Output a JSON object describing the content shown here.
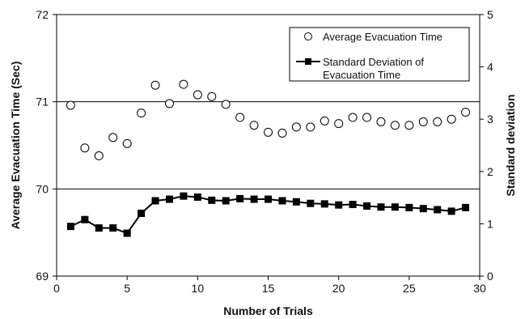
{
  "chart_data": {
    "type": "line",
    "xlabel": "Number of Trials",
    "ylabel_left": "Average Evacuation Time (Sec)",
    "ylabel_right": "Standard deviation",
    "xlim": [
      0,
      30
    ],
    "ylim_left": [
      69,
      72
    ],
    "ylim_right": [
      0,
      5
    ],
    "x_ticks": [
      "0",
      "5",
      "10",
      "15",
      "20",
      "25",
      "30"
    ],
    "y_left_ticks": [
      "72",
      "71",
      "70",
      "69"
    ],
    "y_right_ticks": [
      "5",
      "4",
      "3",
      "2",
      "1",
      "0"
    ],
    "gridlines_left": [
      70,
      71
    ],
    "legend_position": "top-right",
    "series": [
      {
        "name": "Average Evacuation Time",
        "axis": "left",
        "marker": "open-circle",
        "line": false,
        "x": [
          1,
          2,
          3,
          4,
          5,
          6,
          7,
          8,
          9,
          10,
          11,
          12,
          13,
          14,
          15,
          16,
          17,
          18,
          19,
          20,
          21,
          22,
          23,
          24,
          25,
          26,
          27,
          28,
          29
        ],
        "y": [
          70.96,
          70.47,
          70.38,
          70.59,
          70.52,
          70.87,
          71.19,
          70.98,
          71.2,
          71.08,
          71.06,
          70.97,
          70.82,
          70.73,
          70.65,
          70.64,
          70.71,
          70.71,
          70.78,
          70.75,
          70.82,
          70.82,
          70.77,
          70.73,
          70.73,
          70.77,
          70.77,
          70.8,
          70.88
        ]
      },
      {
        "name": "Standard Deviation of Evacuation Time",
        "axis": "right",
        "marker": "filled-square",
        "line": true,
        "x": [
          1,
          2,
          3,
          4,
          5,
          6,
          7,
          8,
          9,
          10,
          11,
          12,
          13,
          14,
          15,
          16,
          17,
          18,
          19,
          20,
          21,
          22,
          23,
          24,
          25,
          26,
          27,
          28,
          29
        ],
        "y": [
          0.95,
          1.08,
          0.92,
          0.92,
          0.82,
          1.2,
          1.44,
          1.47,
          1.53,
          1.51,
          1.45,
          1.44,
          1.48,
          1.47,
          1.47,
          1.44,
          1.42,
          1.39,
          1.38,
          1.36,
          1.37,
          1.34,
          1.32,
          1.32,
          1.31,
          1.29,
          1.27,
          1.24,
          1.31
        ]
      }
    ]
  }
}
